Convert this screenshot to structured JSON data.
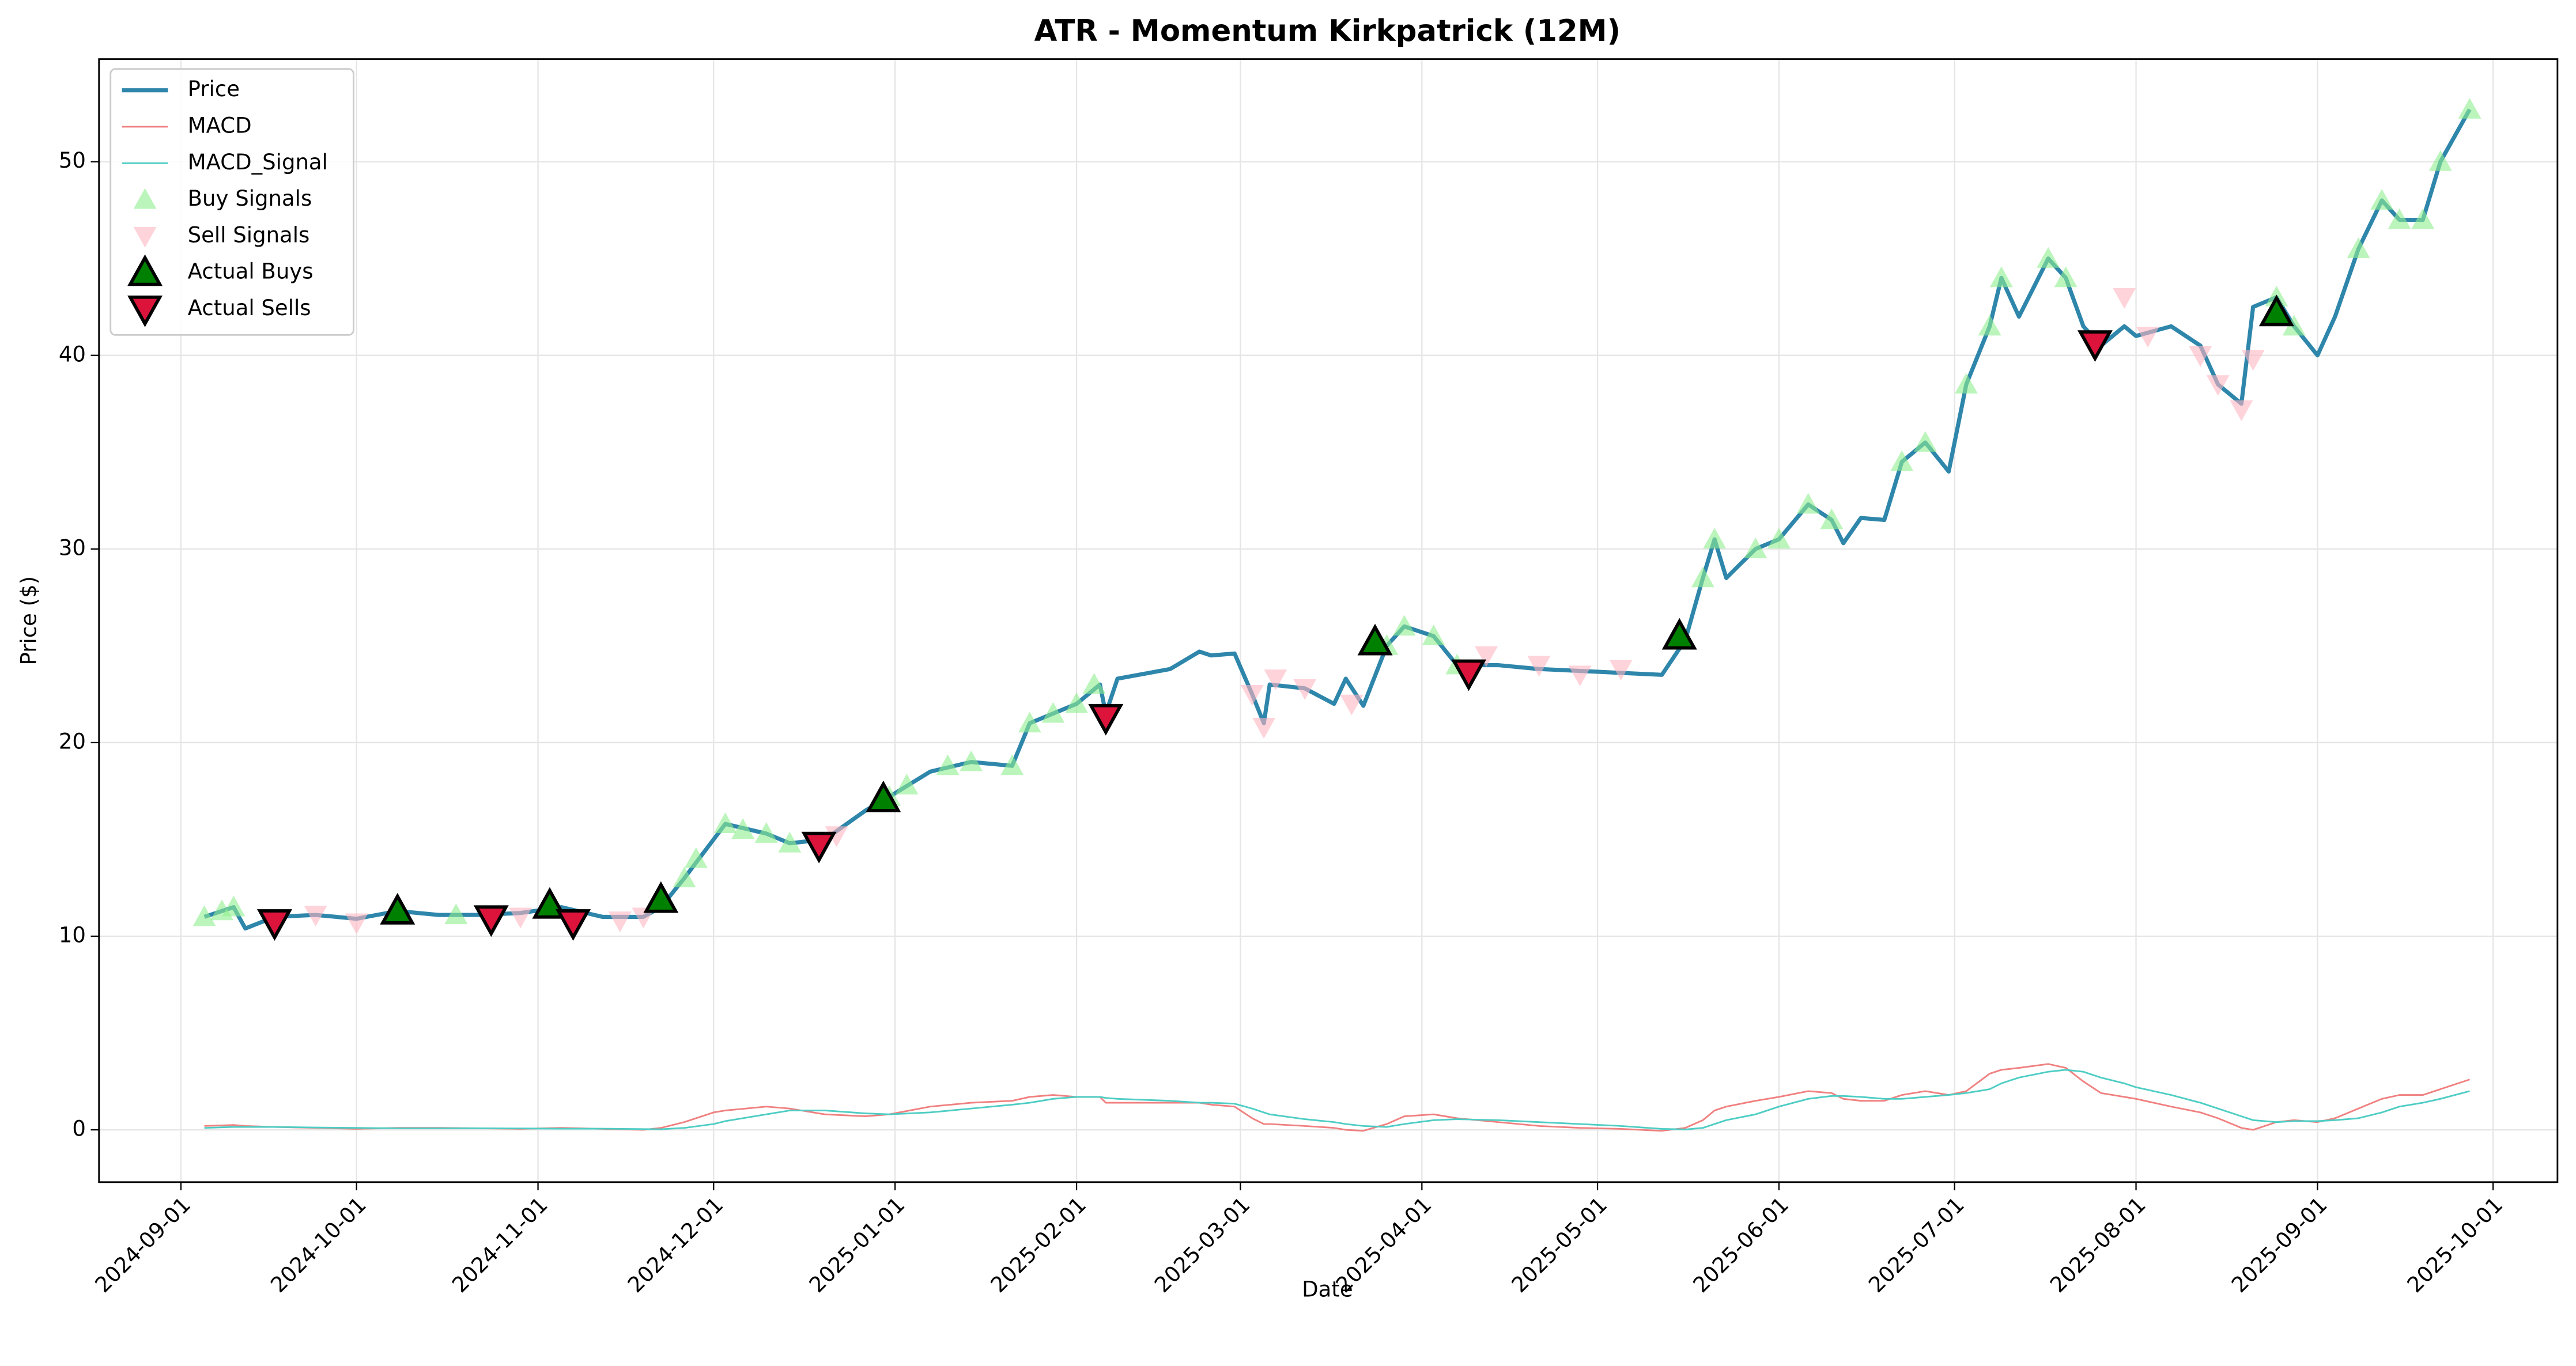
{
  "chart_data": {
    "type": "line",
    "title": "ATR - Momentum Kirkpatrick (12M)",
    "xlabel": "Date",
    "ylabel": "Price ($)",
    "xlim": [
      "2024-08-18",
      "2025-10-12"
    ],
    "xticks": [
      "2024-09-01",
      "2024-10-01",
      "2024-11-01",
      "2024-12-01",
      "2025-01-01",
      "2025-02-01",
      "2025-03-01",
      "2025-04-01",
      "2025-05-01",
      "2025-06-01",
      "2025-07-01",
      "2025-08-01",
      "2025-09-01",
      "2025-10-01"
    ],
    "ylim": [
      -2.7,
      55.3
    ],
    "yticks": [
      0,
      10,
      20,
      30,
      40,
      50
    ],
    "grid": true,
    "legend": "upper left",
    "x": [
      "2024-09-05",
      "2024-09-10",
      "2024-09-12",
      "2024-09-17",
      "2024-09-24",
      "2024-10-01",
      "2024-10-08",
      "2024-10-15",
      "2024-10-22",
      "2024-10-29",
      "2024-11-05",
      "2024-11-12",
      "2024-11-19",
      "2024-11-22",
      "2024-11-26",
      "2024-12-01",
      "2024-12-03",
      "2024-12-10",
      "2024-12-14",
      "2024-12-20",
      "2024-12-27",
      "2024-12-31",
      "2025-01-07",
      "2025-01-14",
      "2025-01-21",
      "2025-01-24",
      "2025-01-28",
      "2025-02-01",
      "2025-02-05",
      "2025-02-06",
      "2025-02-08",
      "2025-02-17",
      "2025-02-22",
      "2025-02-24",
      "2025-02-28",
      "2025-03-03",
      "2025-03-05",
      "2025-03-06",
      "2025-03-12",
      "2025-03-17",
      "2025-03-19",
      "2025-03-22",
      "2025-03-26",
      "2025-03-29",
      "2025-04-03",
      "2025-04-07",
      "2025-04-14",
      "2025-04-21",
      "2025-04-28",
      "2025-05-05",
      "2025-05-12",
      "2025-05-16",
      "2025-05-19",
      "2025-05-21",
      "2025-05-23",
      "2025-05-28",
      "2025-06-01",
      "2025-06-06",
      "2025-06-10",
      "2025-06-12",
      "2025-06-15",
      "2025-06-19",
      "2025-06-22",
      "2025-06-26",
      "2025-06-30",
      "2025-07-03",
      "2025-07-07",
      "2025-07-09",
      "2025-07-12",
      "2025-07-17",
      "2025-07-20",
      "2025-07-23",
      "2025-07-26",
      "2025-07-30",
      "2025-08-01",
      "2025-08-07",
      "2025-08-12",
      "2025-08-15",
      "2025-08-19",
      "2025-08-21",
      "2025-08-25",
      "2025-08-28",
      "2025-09-01",
      "2025-09-04",
      "2025-09-08",
      "2025-09-12",
      "2025-09-15",
      "2025-09-19",
      "2025-09-22",
      "2025-09-27"
    ],
    "series": [
      {
        "name": "Price",
        "style": "line",
        "color": "#2e86ab",
        "width": 2.5,
        "values": [
          11.0,
          11.5,
          10.4,
          11.0,
          11.1,
          10.9,
          11.3,
          11.1,
          11.1,
          11.2,
          11.5,
          11.0,
          11.0,
          11.5,
          13.0,
          15.0,
          15.8,
          15.3,
          14.8,
          15.0,
          16.5,
          17.2,
          18.5,
          19.0,
          18.8,
          21.0,
          21.5,
          22.0,
          23.0,
          21.5,
          23.3,
          23.8,
          24.7,
          24.5,
          24.6,
          22.5,
          21.0,
          23.0,
          22.8,
          22.0,
          23.3,
          21.9,
          25.0,
          26.0,
          25.5,
          24.0,
          24.0,
          23.8,
          23.7,
          23.6,
          23.5,
          25.3,
          28.5,
          30.5,
          28.5,
          30.0,
          30.5,
          32.3,
          31.5,
          30.3,
          31.6,
          31.5,
          34.5,
          35.5,
          34.0,
          38.5,
          41.5,
          44.0,
          42.0,
          45.0,
          44.0,
          41.5,
          40.5,
          41.5,
          41.0,
          41.5,
          40.5,
          38.5,
          37.5,
          42.5,
          43.0,
          41.5,
          40.0,
          42.0,
          45.5,
          48.0,
          47.0,
          47.0,
          50.0,
          52.7
        ]
      },
      {
        "name": "MACD",
        "style": "line",
        "color": "#f08080",
        "width": 1,
        "values": [
          0.2,
          0.25,
          0.2,
          0.15,
          0.1,
          0.05,
          0.1,
          0.1,
          0.08,
          0.05,
          0.1,
          0.05,
          0.0,
          0.1,
          0.4,
          0.9,
          1.0,
          1.2,
          1.1,
          0.8,
          0.7,
          0.8,
          1.2,
          1.4,
          1.5,
          1.7,
          1.8,
          1.7,
          1.7,
          1.4,
          1.4,
          1.4,
          1.4,
          1.3,
          1.2,
          0.6,
          0.3,
          0.3,
          0.2,
          0.1,
          0.0,
          -0.05,
          0.3,
          0.7,
          0.8,
          0.6,
          0.4,
          0.2,
          0.1,
          0.05,
          -0.05,
          0.1,
          0.5,
          1.0,
          1.2,
          1.5,
          1.7,
          2.0,
          1.9,
          1.6,
          1.5,
          1.5,
          1.8,
          2.0,
          1.8,
          2.0,
          2.9,
          3.1,
          3.2,
          3.4,
          3.2,
          2.5,
          1.9,
          1.7,
          1.6,
          1.2,
          0.9,
          0.6,
          0.1,
          0.0,
          0.4,
          0.5,
          0.4,
          0.6,
          1.1,
          1.6,
          1.8,
          1.8,
          2.1,
          2.6
        ]
      },
      {
        "name": "MACD_Signal",
        "style": "line",
        "color": "#4ecdc4",
        "width": 1,
        "values": [
          0.1,
          0.15,
          0.15,
          0.15,
          0.12,
          0.1,
          0.08,
          0.08,
          0.08,
          0.07,
          0.06,
          0.06,
          0.04,
          0.03,
          0.1,
          0.3,
          0.45,
          0.8,
          1.0,
          1.0,
          0.85,
          0.8,
          0.9,
          1.1,
          1.3,
          1.4,
          1.6,
          1.7,
          1.7,
          1.65,
          1.6,
          1.5,
          1.4,
          1.4,
          1.35,
          1.1,
          0.9,
          0.8,
          0.55,
          0.4,
          0.3,
          0.2,
          0.15,
          0.3,
          0.5,
          0.55,
          0.5,
          0.4,
          0.3,
          0.2,
          0.05,
          0.02,
          0.1,
          0.3,
          0.5,
          0.8,
          1.2,
          1.6,
          1.75,
          1.75,
          1.7,
          1.6,
          1.6,
          1.7,
          1.8,
          1.9,
          2.1,
          2.4,
          2.7,
          3.0,
          3.1,
          3.0,
          2.7,
          2.4,
          2.2,
          1.8,
          1.4,
          1.1,
          0.7,
          0.5,
          0.4,
          0.45,
          0.45,
          0.5,
          0.6,
          0.9,
          1.2,
          1.4,
          1.6,
          2.0
        ]
      },
      {
        "name": "Buy Signals",
        "style": "scatter",
        "marker": "up",
        "color": "#90ee90",
        "opacity": 0.6,
        "size": 7,
        "x": [
          "2024-09-05",
          "2024-09-08",
          "2024-09-10",
          "2024-10-08",
          "2024-10-18",
          "2024-11-03",
          "2024-11-22",
          "2024-11-26",
          "2024-11-28",
          "2024-12-03",
          "2024-12-06",
          "2024-12-10",
          "2024-12-14",
          "2024-12-31",
          "2025-01-03",
          "2025-01-10",
          "2025-01-14",
          "2025-01-21",
          "2025-01-24",
          "2025-01-28",
          "2025-02-01",
          "2025-02-04",
          "2025-03-26",
          "2025-03-29",
          "2025-04-03",
          "2025-04-07",
          "2025-05-16",
          "2025-05-19",
          "2025-05-21",
          "2025-05-28",
          "2025-06-01",
          "2025-06-06",
          "2025-06-10",
          "2025-06-22",
          "2025-06-26",
          "2025-07-03",
          "2025-07-07",
          "2025-07-09",
          "2025-07-17",
          "2025-07-20",
          "2025-08-25",
          "2025-08-28",
          "2025-09-08",
          "2025-09-12",
          "2025-09-15",
          "2025-09-19",
          "2025-09-22",
          "2025-09-27"
        ],
        "values": [
          11.0,
          11.3,
          11.5,
          11.3,
          11.1,
          11.6,
          11.9,
          13.0,
          14.0,
          15.8,
          15.5,
          15.3,
          14.8,
          17.2,
          17.8,
          18.8,
          19.0,
          18.8,
          21.0,
          21.5,
          22.0,
          23.0,
          25.0,
          26.0,
          25.5,
          24.0,
          25.3,
          28.5,
          30.5,
          30.0,
          30.5,
          32.3,
          31.5,
          34.5,
          35.5,
          38.5,
          41.5,
          44.0,
          45.0,
          44.0,
          43.0,
          41.5,
          45.5,
          48.0,
          47.0,
          47.0,
          50.0,
          52.7
        ]
      },
      {
        "name": "Sell Signals",
        "style": "scatter",
        "marker": "down",
        "color": "#ffb6c1",
        "opacity": 0.6,
        "size": 7,
        "x": [
          "2024-09-17",
          "2024-09-24",
          "2024-10-01",
          "2024-10-24",
          "2024-10-29",
          "2024-11-07",
          "2024-11-15",
          "2024-11-19",
          "2024-12-19",
          "2024-12-22",
          "2025-02-06",
          "2025-03-03",
          "2025-03-05",
          "2025-03-07",
          "2025-03-12",
          "2025-03-20",
          "2025-04-09",
          "2025-04-12",
          "2025-04-21",
          "2025-04-28",
          "2025-05-05",
          "2025-07-25",
          "2025-07-30",
          "2025-08-03",
          "2025-08-12",
          "2025-08-15",
          "2025-08-19",
          "2025-08-21"
        ],
        "values": [
          10.7,
          11.1,
          10.7,
          10.9,
          11.0,
          10.7,
          10.8,
          11.0,
          14.7,
          15.2,
          21.3,
          22.5,
          20.8,
          23.3,
          22.8,
          22.0,
          23.6,
          24.5,
          24.0,
          23.5,
          23.8,
          40.6,
          43.0,
          41.0,
          40.0,
          38.5,
          37.2,
          39.8
        ]
      },
      {
        "name": "Actual Buys",
        "style": "scatter",
        "marker": "up",
        "color": "#008000",
        "edge": "#000000",
        "opacity": 1,
        "size": 9,
        "x": [
          "2024-10-08",
          "2024-11-03",
          "2024-11-22",
          "2024-12-30",
          "2025-03-24",
          "2025-05-15",
          "2025-08-25"
        ],
        "values": [
          11.3,
          11.6,
          11.9,
          17.1,
          25.2,
          25.5,
          42.2
        ]
      },
      {
        "name": "Actual Sells",
        "style": "scatter",
        "marker": "down",
        "color": "#dc143c",
        "edge": "#000000",
        "opacity": 1,
        "size": 9,
        "x": [
          "2024-09-17",
          "2024-10-24",
          "2024-11-07",
          "2024-12-19",
          "2025-02-06",
          "2025-04-09",
          "2025-07-25"
        ],
        "values": [
          10.7,
          10.9,
          10.7,
          14.7,
          21.3,
          23.6,
          40.6
        ]
      }
    ]
  }
}
